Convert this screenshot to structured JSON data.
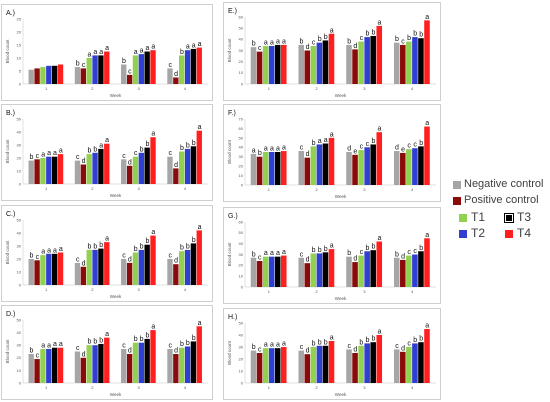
{
  "legend": {
    "items": [
      {
        "name": "Negative control",
        "color": "#a6a6a6"
      },
      {
        "name": "Positive control",
        "color": "#8b0b0b"
      },
      {
        "name": "T1",
        "color": "#92d050"
      },
      {
        "name": "T2",
        "color": "#2f3fd1"
      },
      {
        "name": "T3",
        "color": "#000000"
      },
      {
        "name": "T4",
        "color": "#ff1f1f"
      }
    ]
  },
  "chart_data": [
    {
      "panel_label": "A.)",
      "type": "bar",
      "categories": [
        "1",
        "2",
        "3",
        "4"
      ],
      "xlabel": "Week",
      "ylabel": "Blood count",
      "ylim": [
        0,
        25
      ],
      "yticks": [
        0,
        5,
        10,
        15,
        20,
        25
      ],
      "series": [
        {
          "color": "#a6a6a6",
          "values": [
            5.5,
            6.5,
            7.5,
            6
          ]
        },
        {
          "color": "#8b0b0b",
          "values": [
            6,
            6,
            3.5,
            2.5
          ]
        },
        {
          "color": "#92d050",
          "values": [
            6.5,
            10,
            11,
            11
          ]
        },
        {
          "color": "#2f3fd1",
          "values": [
            7,
            11,
            11.5,
            13
          ]
        },
        {
          "color": "#000000",
          "values": [
            7,
            11,
            12.5,
            13.5
          ]
        },
        {
          "color": "#ff1f1f",
          "values": [
            7.5,
            12.5,
            13,
            14
          ]
        }
      ],
      "letters": [
        [],
        [
          "b",
          "c",
          "a",
          "a",
          "a",
          "a"
        ],
        [
          "b",
          "c",
          "a",
          "a",
          "a",
          "a"
        ],
        [
          "c",
          "d",
          "b",
          "a",
          "a",
          "a"
        ]
      ]
    },
    {
      "panel_label": "B.)",
      "type": "bar",
      "categories": [
        "1",
        "2",
        "3",
        "4"
      ],
      "xlabel": "Week",
      "ylabel": "Blood count",
      "ylim": [
        0,
        50
      ],
      "yticks": [
        0,
        10,
        20,
        30,
        40,
        50
      ],
      "series": [
        {
          "color": "#a6a6a6",
          "values": [
            18,
            18,
            19,
            21
          ]
        },
        {
          "color": "#8b0b0b",
          "values": [
            19,
            15,
            14,
            12
          ]
        },
        {
          "color": "#92d050",
          "values": [
            20,
            23,
            21,
            25
          ]
        },
        {
          "color": "#2f3fd1",
          "values": [
            21,
            24,
            24,
            27
          ]
        },
        {
          "color": "#000000",
          "values": [
            21,
            27,
            28,
            29
          ]
        },
        {
          "color": "#ff1f1f",
          "values": [
            23,
            31,
            36,
            41
          ]
        }
      ],
      "letters": [
        [
          "b",
          "c",
          "a",
          "a",
          "a",
          "a"
        ],
        [
          "c",
          "d",
          "b",
          "b",
          "a",
          "a"
        ],
        [
          "c",
          "d",
          "c",
          "b",
          "b",
          "a"
        ],
        [
          "c",
          "d",
          "b",
          "b",
          "b",
          "a"
        ]
      ]
    },
    {
      "panel_label": "C.)",
      "type": "bar",
      "categories": [
        "1",
        "2",
        "3",
        "4"
      ],
      "xlabel": "Week",
      "ylabel": "Blood count",
      "ylim": [
        0,
        50
      ],
      "yticks": [
        0,
        10,
        20,
        30,
        40,
        50
      ],
      "series": [
        {
          "color": "#a6a6a6",
          "values": [
            20,
            17,
            20,
            20
          ]
        },
        {
          "color": "#8b0b0b",
          "values": [
            19,
            14,
            17,
            16
          ]
        },
        {
          "color": "#92d050",
          "values": [
            23,
            27,
            25,
            26
          ]
        },
        {
          "color": "#2f3fd1",
          "values": [
            24,
            27,
            27,
            27
          ]
        },
        {
          "color": "#000000",
          "values": [
            24,
            28,
            31,
            32
          ]
        },
        {
          "color": "#ff1f1f",
          "values": [
            25,
            33,
            38,
            42
          ]
        }
      ],
      "letters": [
        [
          "b",
          "c",
          "a",
          "a",
          "a",
          "a"
        ],
        [
          "c",
          "d",
          "b",
          "b",
          "b",
          "a"
        ],
        [
          "c",
          "d",
          "b",
          "b",
          "b",
          "a"
        ],
        [
          "c",
          "d",
          "b",
          "b",
          "b",
          "a"
        ]
      ]
    },
    {
      "panel_label": "D.)",
      "type": "bar",
      "categories": [
        "1",
        "2",
        "3",
        "4"
      ],
      "xlabel": "Week",
      "ylabel": "Blood count",
      "ylim": [
        0,
        50
      ],
      "yticks": [
        0,
        10,
        20,
        30,
        40,
        50
      ],
      "series": [
        {
          "color": "#a6a6a6",
          "values": [
            23,
            25,
            27,
            27
          ]
        },
        {
          "color": "#8b0b0b",
          "values": [
            19,
            20,
            23,
            23
          ]
        },
        {
          "color": "#92d050",
          "values": [
            27,
            30,
            32,
            28
          ]
        },
        {
          "color": "#2f3fd1",
          "values": [
            27,
            30,
            32,
            29
          ]
        },
        {
          "color": "#000000",
          "values": [
            28,
            31,
            35,
            33
          ]
        },
        {
          "color": "#ff1f1f",
          "values": [
            28,
            36,
            42,
            45
          ]
        }
      ],
      "letters": [
        [
          "b",
          "c",
          "a",
          "a",
          "a",
          "a"
        ],
        [
          "c",
          "d",
          "b",
          "b",
          "b",
          "a"
        ],
        [
          "c",
          "d",
          "b",
          "b",
          "b",
          "a"
        ],
        [
          "c",
          "d",
          "b",
          "b",
          "b",
          "a"
        ]
      ]
    },
    {
      "panel_label": "E.)",
      "type": "bar",
      "categories": [
        "1",
        "2",
        "3",
        "4"
      ],
      "xlabel": "Week",
      "ylabel": "Blood count",
      "ylim": [
        0,
        60
      ],
      "yticks": [
        0,
        10,
        20,
        30,
        40,
        50,
        60
      ],
      "series": [
        {
          "color": "#a6a6a6",
          "values": [
            33,
            35,
            35,
            37
          ]
        },
        {
          "color": "#8b0b0b",
          "values": [
            29,
            30,
            31,
            35
          ]
        },
        {
          "color": "#92d050",
          "values": [
            34,
            34,
            38,
            38
          ]
        },
        {
          "color": "#2f3fd1",
          "values": [
            34,
            37,
            42,
            42
          ]
        },
        {
          "color": "#000000",
          "values": [
            35,
            39,
            43,
            41
          ]
        },
        {
          "color": "#ff1f1f",
          "values": [
            35,
            45,
            52,
            57
          ]
        }
      ],
      "letters": [
        [
          "b",
          "c",
          "a",
          "a",
          "a",
          "a"
        ],
        [
          "b",
          "d",
          "c",
          "b",
          "b",
          "a"
        ],
        [
          "b",
          "d",
          "c",
          "b",
          "b",
          "a"
        ],
        [
          "b",
          "c",
          "b",
          "b",
          "b",
          "a"
        ]
      ]
    },
    {
      "panel_label": "F.)",
      "type": "bar",
      "categories": [
        "1",
        "2",
        "3",
        "4"
      ],
      "xlabel": "Week",
      "ylabel": "Blood count",
      "ylim": [
        0,
        70
      ],
      "yticks": [
        0,
        10,
        20,
        30,
        40,
        50,
        60,
        70
      ],
      "series": [
        {
          "color": "#a6a6a6",
          "values": [
            33,
            36,
            35,
            36
          ]
        },
        {
          "color": "#8b0b0b",
          "values": [
            30,
            29,
            32,
            34
          ]
        },
        {
          "color": "#92d050",
          "values": [
            35,
            41,
            37,
            38
          ]
        },
        {
          "color": "#2f3fd1",
          "values": [
            35,
            43,
            40,
            39
          ]
        },
        {
          "color": "#000000",
          "values": [
            35,
            44,
            43,
            41
          ]
        },
        {
          "color": "#ff1f1f",
          "values": [
            36,
            50,
            56,
            62
          ]
        }
      ],
      "letters": [
        [
          "a",
          "b",
          "a",
          "a",
          "a",
          "a"
        ],
        [
          "c",
          "d",
          "b",
          "a",
          "a",
          "a"
        ],
        [
          "d",
          "e",
          "c",
          "c",
          "b",
          "a"
        ],
        [
          "d",
          "e",
          "c",
          "c",
          "b",
          "a"
        ]
      ]
    },
    {
      "panel_label": "G.)",
      "type": "bar",
      "categories": [
        "1",
        "2",
        "3",
        "4"
      ],
      "xlabel": "Week",
      "ylabel": "Blood count",
      "ylim": [
        0,
        60
      ],
      "yticks": [
        0,
        10,
        20,
        30,
        40,
        50,
        60
      ],
      "series": [
        {
          "color": "#a6a6a6",
          "values": [
            27,
            27,
            28,
            27
          ]
        },
        {
          "color": "#8b0b0b",
          "values": [
            24,
            22,
            23,
            25
          ]
        },
        {
          "color": "#92d050",
          "values": [
            28,
            31,
            29,
            29
          ]
        },
        {
          "color": "#2f3fd1",
          "values": [
            28,
            31,
            33,
            30
          ]
        },
        {
          "color": "#000000",
          "values": [
            28,
            32,
            34,
            33
          ]
        },
        {
          "color": "#ff1f1f",
          "values": [
            29,
            35,
            42,
            45
          ]
        }
      ],
      "letters": [
        [
          "b",
          "c",
          "a",
          "a",
          "a",
          "a"
        ],
        [
          "c",
          "d",
          "b",
          "b",
          "b",
          "a"
        ],
        [
          "b",
          "d",
          "c",
          "b",
          "b",
          "a"
        ],
        [
          "b",
          "d",
          "c",
          "c",
          "b",
          "a"
        ]
      ]
    },
    {
      "panel_label": "H.)",
      "type": "bar",
      "categories": [
        "1",
        "2",
        "3",
        "4"
      ],
      "xlabel": "Week",
      "ylabel": "Blood count",
      "ylim": [
        0,
        50
      ],
      "yticks": [
        0,
        10,
        20,
        30,
        40,
        50
      ],
      "series": [
        {
          "color": "#a6a6a6",
          "values": [
            27,
            27,
            28,
            28
          ]
        },
        {
          "color": "#8b0b0b",
          "values": [
            25,
            24,
            25,
            26
          ]
        },
        {
          "color": "#92d050",
          "values": [
            29,
            30,
            31,
            30
          ]
        },
        {
          "color": "#2f3fd1",
          "values": [
            29,
            31,
            33,
            33
          ]
        },
        {
          "color": "#000000",
          "values": [
            29,
            31,
            34,
            34
          ]
        },
        {
          "color": "#ff1f1f",
          "values": [
            30,
            35,
            40,
            45
          ]
        }
      ],
      "letters": [
        [
          "b",
          "c",
          "a",
          "a",
          "a",
          "a"
        ],
        [
          "c",
          "d",
          "b",
          "b",
          "b",
          "a"
        ],
        [
          "c",
          "d",
          "b",
          "b",
          "b",
          "a"
        ],
        [
          "c",
          "d",
          "c",
          "b",
          "b",
          "a"
        ]
      ]
    }
  ]
}
